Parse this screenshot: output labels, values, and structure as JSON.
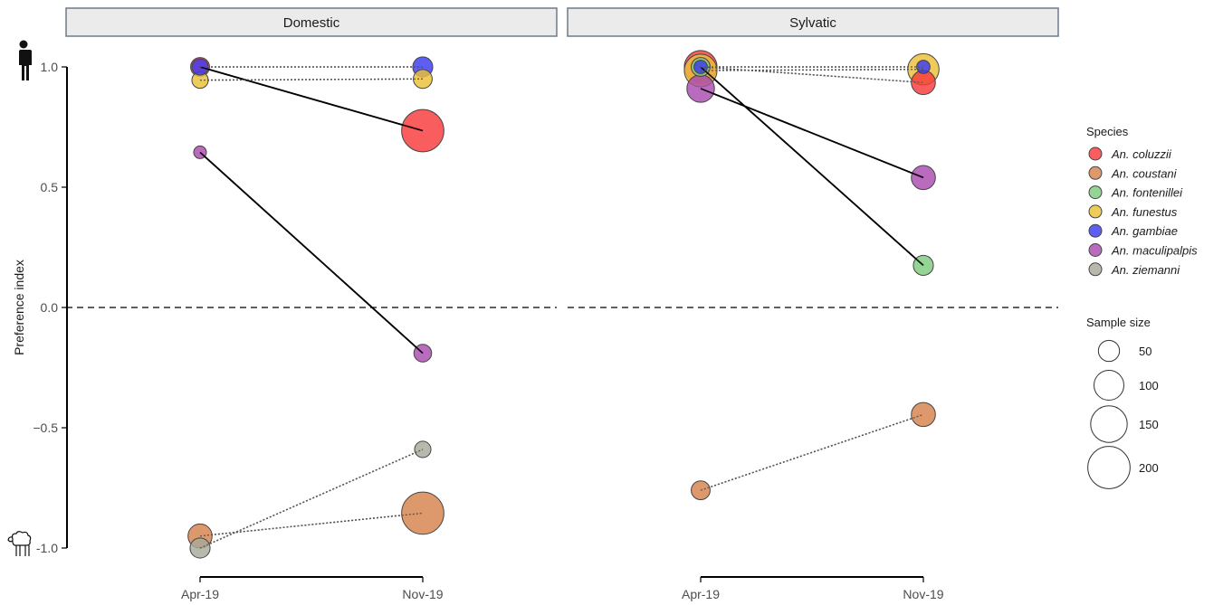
{
  "chart_data": {
    "type": "scatter",
    "xlabel": "",
    "ylabel": "Preference index",
    "ylim": [
      -1.0,
      1.0
    ],
    "y_ticks": [
      "-1.0",
      "−0.5",
      "0.0",
      "0.5",
      "1.0"
    ],
    "x_categories": [
      "Apr-19",
      "Nov-19"
    ],
    "reference_line": {
      "y": 0.0,
      "style": "dashed"
    },
    "icons": {
      "top": "human-silhouette-icon",
      "bottom": "sheep-icon"
    },
    "species": [
      {
        "name": "An. coluzzii",
        "color": "#f8393a"
      },
      {
        "name": "An. coustani",
        "color": "#d5824a"
      },
      {
        "name": "An. fontenillei",
        "color": "#7ccb7c"
      },
      {
        "name": "An. funestus",
        "color": "#ecc038"
      },
      {
        "name": "An. gambiae",
        "color": "#3b3bf0"
      },
      {
        "name": "An. maculipalpis",
        "color": "#a94aae"
      },
      {
        "name": "An. ziemanni",
        "color": "#a8a89a"
      }
    ],
    "legend": {
      "species_title": "Species",
      "size_title": "Sample size",
      "sizes": [
        50,
        100,
        150,
        200
      ]
    },
    "panels": [
      {
        "name": "Domestic",
        "series": [
          {
            "species": "An. coluzzii",
            "points": [
              {
                "x": "Apr-19",
                "y": 1.0,
                "n": 40
              },
              {
                "x": "Nov-19",
                "y": 0.735,
                "n": 200
              }
            ],
            "line": "solid"
          },
          {
            "species": "An. funestus",
            "points": [
              {
                "x": "Apr-19",
                "y": 0.945,
                "n": 30
              },
              {
                "x": "Nov-19",
                "y": 0.95,
                "n": 40
              }
            ],
            "line": "dotted"
          },
          {
            "species": "An. gambiae",
            "points": [
              {
                "x": "Apr-19",
                "y": 1.0,
                "n": 30
              },
              {
                "x": "Nov-19",
                "y": 1.0,
                "n": 45
              }
            ],
            "line": "dotted"
          },
          {
            "species": "An. maculipalpis",
            "points": [
              {
                "x": "Apr-19",
                "y": 0.645,
                "n": 18
              },
              {
                "x": "Nov-19",
                "y": -0.19,
                "n": 35
              }
            ],
            "line": "solid"
          },
          {
            "species": "An. coustani",
            "points": [
              {
                "x": "Apr-19",
                "y": -0.95,
                "n": 65
              },
              {
                "x": "Nov-19",
                "y": -0.855,
                "n": 200
              }
            ],
            "line": "dotted"
          },
          {
            "species": "An. ziemanni",
            "points": [
              {
                "x": "Apr-19",
                "y": -1.0,
                "n": 45
              },
              {
                "x": "Nov-19",
                "y": -0.59,
                "n": 30
              }
            ],
            "line": "dotted"
          }
        ]
      },
      {
        "name": "Sylvatic",
        "series": [
          {
            "species": "An. maculipalpis",
            "points": [
              {
                "x": "Apr-19",
                "y": 0.91,
                "n": 85
              },
              {
                "x": "Nov-19",
                "y": 0.54,
                "n": 65
              }
            ],
            "line": "solid"
          },
          {
            "species": "An. fontenillei",
            "points": [
              {
                "x": "Apr-19",
                "y": 1.0,
                "n": 40
              },
              {
                "x": "Nov-19",
                "y": 0.175,
                "n": 45
              }
            ],
            "line": "solid"
          },
          {
            "species": "An. coluzzii",
            "points": [
              {
                "x": "Apr-19",
                "y": 1.0,
                "n": 120
              },
              {
                "x": "Nov-19",
                "y": 0.935,
                "n": 65
              }
            ],
            "line": "dotted"
          },
          {
            "species": "An. funestus",
            "points": [
              {
                "x": "Apr-19",
                "y": 0.985,
                "n": 120
              },
              {
                "x": "Nov-19",
                "y": 0.99,
                "n": 110
              }
            ],
            "line": "dotted"
          },
          {
            "species": "An. gambiae",
            "points": [
              {
                "x": "Apr-19",
                "y": 1.0,
                "n": 20
              },
              {
                "x": "Nov-19",
                "y": 1.0,
                "n": 20
              }
            ],
            "line": "dotted"
          },
          {
            "species": "An. coustani",
            "points": [
              {
                "x": "Apr-19",
                "y": -0.76,
                "n": 40
              },
              {
                "x": "Nov-19",
                "y": -0.445,
                "n": 65
              }
            ],
            "line": "dotted"
          }
        ]
      }
    ]
  }
}
